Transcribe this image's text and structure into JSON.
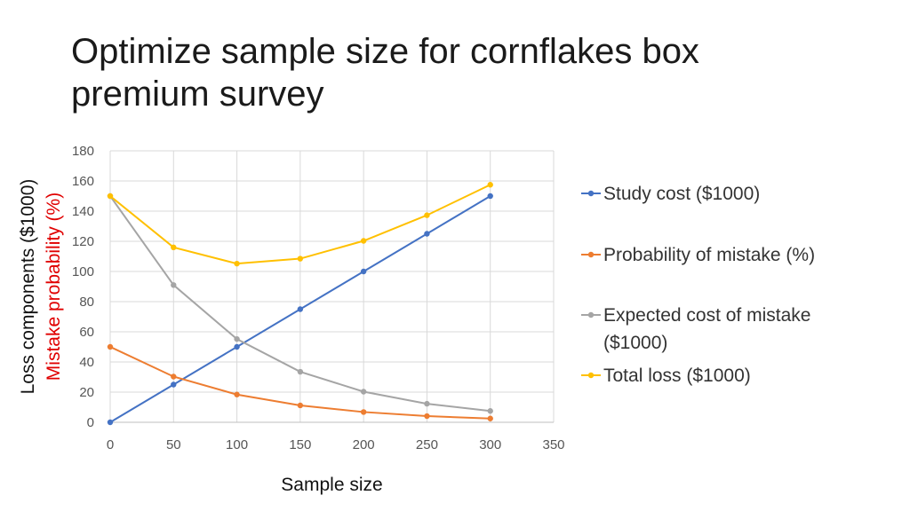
{
  "slide": {
    "title_line1": "Optimize sample size for cornflakes box",
    "title_line2": "premium survey"
  },
  "chart_data": {
    "type": "line",
    "title": "",
    "xlabel": "Sample size",
    "ylabel_parts": [
      "Loss components ($1000)",
      "Mistake",
      " probability (%)"
    ],
    "ylabel_colors": [
      "#111111",
      "#e00000",
      "#e00000"
    ],
    "x": [
      0,
      50,
      100,
      150,
      200,
      250,
      300
    ],
    "xlim": [
      0,
      350
    ],
    "ylim": [
      0,
      180
    ],
    "x_ticks": [
      0,
      50,
      100,
      150,
      200,
      250,
      300,
      350
    ],
    "y_ticks": [
      0,
      20,
      40,
      60,
      80,
      100,
      120,
      140,
      160,
      180
    ],
    "grid": true,
    "legend_position": "right",
    "series": [
      {
        "name": "Study cost ($1000)",
        "color": "#4472c4",
        "values": [
          0,
          25,
          50,
          75,
          100,
          125,
          150
        ]
      },
      {
        "name": "Probability of mistake (%)",
        "color": "#ed7d31",
        "values": [
          50,
          30.3,
          18.4,
          11.2,
          6.8,
          4.1,
          2.5
        ]
      },
      {
        "name": "Expected cost of mistake ($1000)",
        "color": "#a5a5a5",
        "values": [
          150,
          91,
          55.2,
          33.5,
          20.3,
          12.3,
          7.5
        ]
      },
      {
        "name": "Total loss ($1000)",
        "color": "#ffc000",
        "values": [
          150,
          116,
          105.2,
          108.5,
          120.3,
          137.3,
          157.5
        ]
      }
    ]
  }
}
